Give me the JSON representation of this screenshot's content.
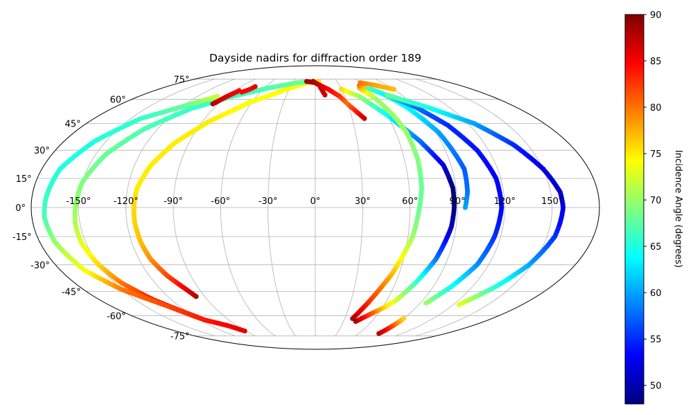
{
  "chart_data": {
    "type": "scatter",
    "projection": "mollweide",
    "title": "Dayside nadirs for diffraction order 189",
    "xlabel": "",
    "ylabel": "",
    "longitude_ticks": [
      "-150°",
      "-120°",
      "-90°",
      "-60°",
      "-30°",
      "0°",
      "30°",
      "60°",
      "90°",
      "120°",
      "150°"
    ],
    "latitude_ticks": [
      "75°",
      "60°",
      "45°",
      "30°",
      "15°",
      "0°",
      "-15°",
      "-30°",
      "-45°",
      "-60°",
      "-75°"
    ],
    "grid": true,
    "colorbar": {
      "label": "Incidence Angle (degrees)",
      "colormap": "jet",
      "range": [
        48,
        90
      ],
      "ticks": [
        "50",
        "55",
        "60",
        "65",
        "70",
        "75",
        "80",
        "85",
        "90"
      ]
    },
    "series": [
      {
        "points": [
          [
            -97,
            -48,
            88
          ],
          [
            -100,
            -44,
            86
          ],
          [
            -107,
            -36,
            82
          ],
          [
            -112,
            -27,
            79
          ],
          [
            -114,
            -18,
            77
          ],
          [
            -115,
            -8,
            76
          ],
          [
            -115,
            0,
            76
          ],
          [
            -114,
            10,
            75
          ],
          [
            -109,
            22,
            75
          ],
          [
            -100,
            34,
            75
          ],
          [
            -85,
            46,
            75
          ],
          [
            -62,
            58,
            74
          ],
          [
            -30,
            68,
            74
          ],
          [
            -10,
            72,
            74
          ],
          [
            5,
            73,
            75
          ]
        ]
      },
      {
        "points": [
          [
            -118,
            -61,
            87
          ],
          [
            -135,
            -50,
            84
          ],
          [
            -145,
            -40,
            80
          ],
          [
            -150,
            -30,
            76
          ],
          [
            -153,
            -18,
            73
          ],
          [
            -153,
            -8,
            71
          ],
          [
            -152,
            0,
            70
          ],
          [
            -150,
            13,
            69
          ],
          [
            -143,
            28,
            68
          ],
          [
            -130,
            42,
            67
          ],
          [
            -110,
            54,
            66
          ],
          [
            -85,
            62,
            66
          ],
          [
            -55,
            68,
            67
          ],
          [
            -25,
            72,
            68
          ],
          [
            -5,
            73,
            68
          ]
        ]
      },
      {
        "points": [
          [
            -91,
            -71,
            86
          ],
          [
            -100,
            -67,
            85
          ],
          [
            -115,
            -63,
            84
          ],
          [
            -130,
            -54,
            82
          ],
          [
            -150,
            -44,
            80
          ],
          [
            -163,
            -33,
            74
          ],
          [
            -170,
            -18,
            70
          ],
          [
            -172,
            -5,
            67
          ],
          [
            -171,
            5,
            66
          ],
          [
            -168,
            20,
            65
          ],
          [
            -158,
            35,
            65
          ],
          [
            -142,
            48,
            66
          ],
          [
            -118,
            56,
            68
          ],
          [
            -100,
            62,
            72
          ]
        ]
      },
      {
        "points": [
          [
            -95,
            57,
            88
          ],
          [
            -90,
            62,
            86
          ],
          [
            -85,
            66,
            85
          ]
        ]
      },
      {
        "points": [
          [
            -73,
            69,
            86
          ],
          [
            -75,
            67,
            85
          ],
          [
            -80,
            65,
            85
          ]
        ]
      },
      {
        "points": [
          [
            -3,
            73,
            89
          ],
          [
            5,
            70,
            87
          ],
          [
            10,
            63,
            87
          ]
        ]
      },
      {
        "points": [
          [
            -12,
            73,
            89
          ],
          [
            0,
            72,
            88
          ],
          [
            15,
            67,
            85
          ],
          [
            25,
            62,
            83
          ],
          [
            30,
            57,
            80
          ],
          [
            40,
            48,
            87
          ]
        ]
      },
      {
        "points": [
          [
            30,
            67,
            76
          ],
          [
            45,
            62,
            70
          ],
          [
            60,
            50,
            64
          ],
          [
            75,
            35,
            58
          ],
          [
            85,
            22,
            52
          ],
          [
            88,
            10,
            48
          ],
          [
            88,
            0,
            48
          ],
          [
            87,
            -10,
            50
          ],
          [
            82,
            -27,
            58
          ],
          [
            75,
            -40,
            66
          ],
          [
            68,
            -50,
            72
          ],
          [
            61,
            -55,
            76
          ],
          [
            43,
            -64,
            88
          ]
        ]
      },
      {
        "points": [
          [
            52,
            68,
            78
          ],
          [
            60,
            60,
            70
          ],
          [
            65,
            50,
            70
          ],
          [
            68,
            40,
            70
          ],
          [
            69,
            25,
            69
          ],
          [
            68,
            10,
            68
          ],
          [
            66,
            0,
            68
          ],
          [
            63,
            -15,
            70
          ],
          [
            55,
            -35,
            77
          ],
          [
            45,
            -52,
            83
          ],
          [
            38,
            -62,
            88
          ]
        ]
      },
      {
        "points": [
          [
            55,
            70,
            80
          ],
          [
            70,
            65,
            70
          ],
          [
            82,
            55,
            64
          ],
          [
            92,
            40,
            60
          ],
          [
            98,
            20,
            57
          ],
          [
            97,
            8,
            58
          ],
          [
            95,
            0,
            60
          ]
        ]
      },
      {
        "points": [
          [
            60,
            72,
            80
          ],
          [
            75,
            70,
            78
          ],
          [
            90,
            67,
            77
          ]
        ]
      },
      {
        "points": [
          [
            62,
            68,
            67
          ],
          [
            75,
            62,
            63
          ],
          [
            90,
            55,
            58
          ],
          [
            103,
            44,
            55
          ],
          [
            112,
            30,
            54
          ],
          [
            117,
            15,
            53
          ],
          [
            118,
            0,
            53
          ],
          [
            116,
            -15,
            55
          ],
          [
            112,
            -30,
            59
          ],
          [
            104,
            -42,
            64
          ],
          [
            95,
            -52,
            70
          ]
        ]
      },
      {
        "points": [
          [
            75,
            63,
            68
          ],
          [
            100,
            55,
            65
          ],
          [
            125,
            45,
            60
          ],
          [
            140,
            33,
            55
          ],
          [
            150,
            20,
            52
          ],
          [
            156,
            8,
            51
          ],
          [
            157,
            0,
            52
          ],
          [
            155,
            -15,
            55
          ],
          [
            148,
            -30,
            60
          ],
          [
            138,
            -42,
            65
          ],
          [
            125,
            -53,
            73
          ]
        ]
      },
      {
        "points": [
          [
            88,
            -73,
            88
          ],
          [
            89,
            -67,
            82
          ],
          [
            90,
            -62,
            76
          ]
        ]
      }
    ]
  }
}
